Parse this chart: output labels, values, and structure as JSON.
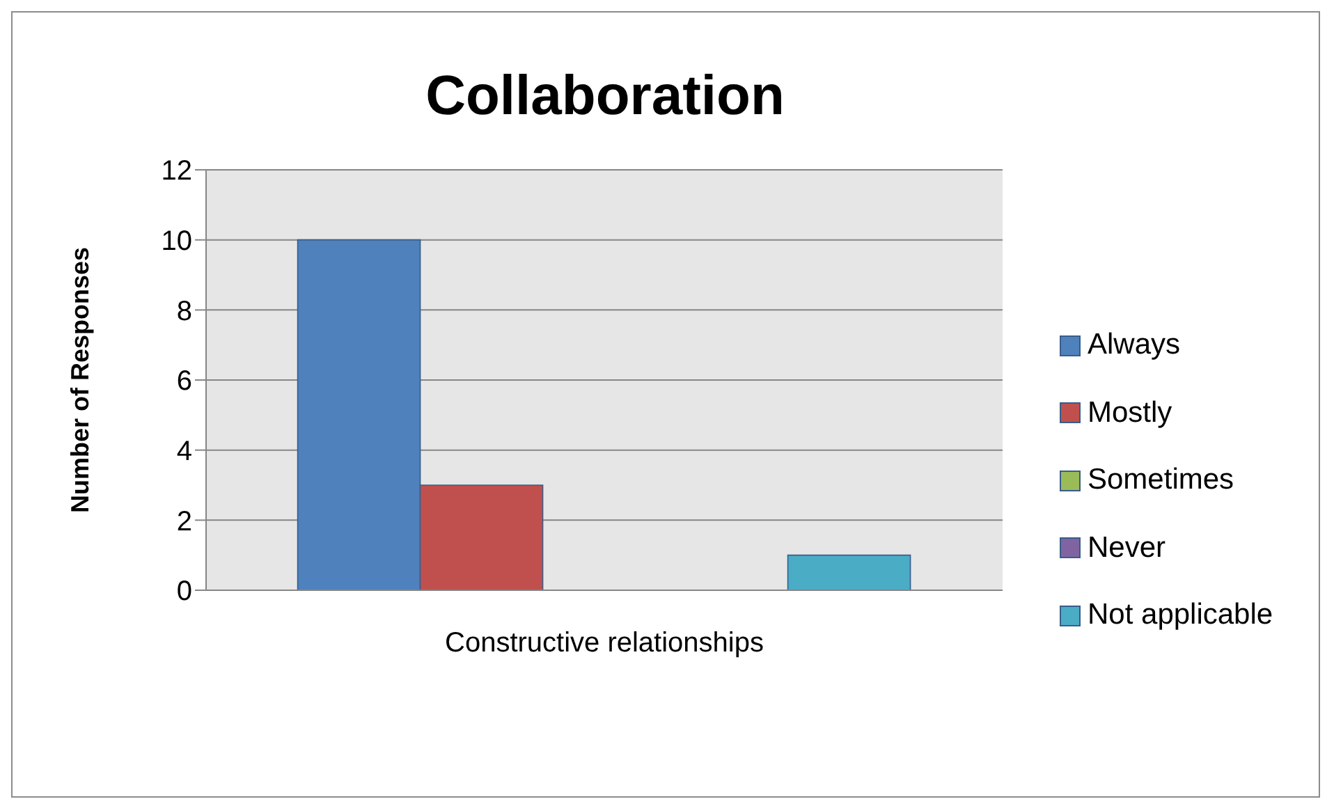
{
  "chart_data": {
    "type": "bar",
    "title": "Collaboration",
    "ylabel": "Number of Responses",
    "categories": [
      "Constructive relationships"
    ],
    "series": [
      {
        "name": "Always",
        "color": "#4f81bd",
        "values": [
          10
        ]
      },
      {
        "name": "Mostly",
        "color": "#c0504d",
        "values": [
          3
        ]
      },
      {
        "name": "Sometimes",
        "color": "#9bbb59",
        "values": [
          0
        ]
      },
      {
        "name": "Never",
        "color": "#8064a2",
        "values": [
          0
        ]
      },
      {
        "name": "Not applicable",
        "color": "#4bacc6",
        "values": [
          1
        ]
      }
    ],
    "ylim": [
      0,
      12
    ],
    "yticks": [
      0,
      2,
      4,
      6,
      8,
      10,
      12
    ],
    "grid": "y",
    "legend": "right"
  }
}
